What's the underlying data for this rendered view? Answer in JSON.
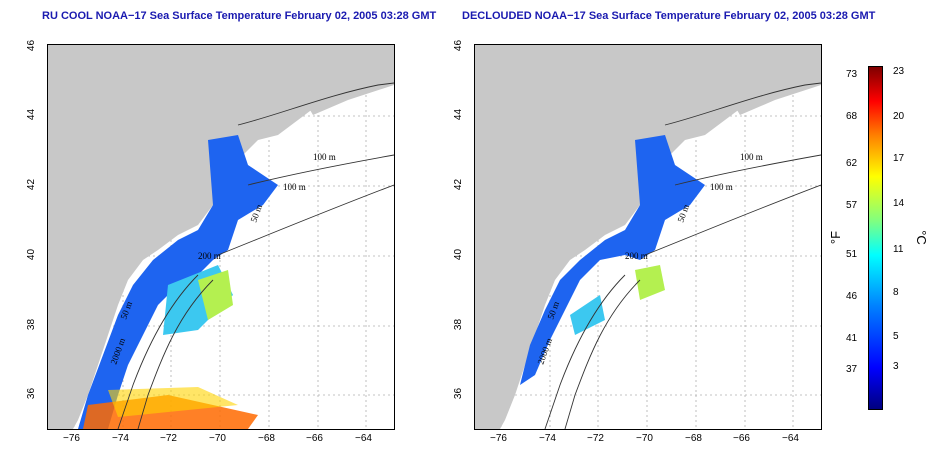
{
  "titles": {
    "left": "RU COOL NOAA−17 Sea Surface Temperature February 02, 2005 03:28 GMT",
    "right": "DECLOUDED NOAA−17 Sea Surface Temperature February 02, 2005 03:28 GMT"
  },
  "map_axes": {
    "lon_range": [
      -77,
      -63
    ],
    "lat_range": [
      35,
      46
    ],
    "x_ticks": [
      "−76",
      "−74",
      "−72",
      "−70",
      "−68",
      "−66",
      "−64"
    ],
    "y_ticks": [
      "36",
      "38",
      "40",
      "42",
      "44",
      "46"
    ],
    "grid": true
  },
  "left_contours": {
    "c100a": "100 m",
    "c100b": "100 m",
    "c50a": "50 m",
    "c200": "200 m",
    "c50b": "50 m",
    "c2000": "2000 m"
  },
  "right_contours": {
    "c100a": "100 m",
    "c100b": "100 m",
    "c50a": "50 m",
    "c200": "200 m",
    "c50b": "50 m",
    "c2000": "2000 m"
  },
  "colorbar": {
    "fahrenheit_ticks": [
      "73",
      "68",
      "62",
      "57",
      "51",
      "46",
      "41",
      "37"
    ],
    "celsius_ticks": [
      "23",
      "20",
      "17",
      "14",
      "11",
      "8",
      "5",
      "3"
    ],
    "f_unit": "°F",
    "c_unit": "°C",
    "colors": [
      "#00007f",
      "#0000ff",
      "#0080ff",
      "#00ffff",
      "#80ff80",
      "#ffff00",
      "#ff8000",
      "#ff0000",
      "#7f0000"
    ]
  },
  "colors": {
    "land": "#c8c8c8",
    "title": "#1a1ab0",
    "cold_water": "#1e64f0",
    "mid_water": "#3cc8f0",
    "warm_water": "#b4f050"
  }
}
